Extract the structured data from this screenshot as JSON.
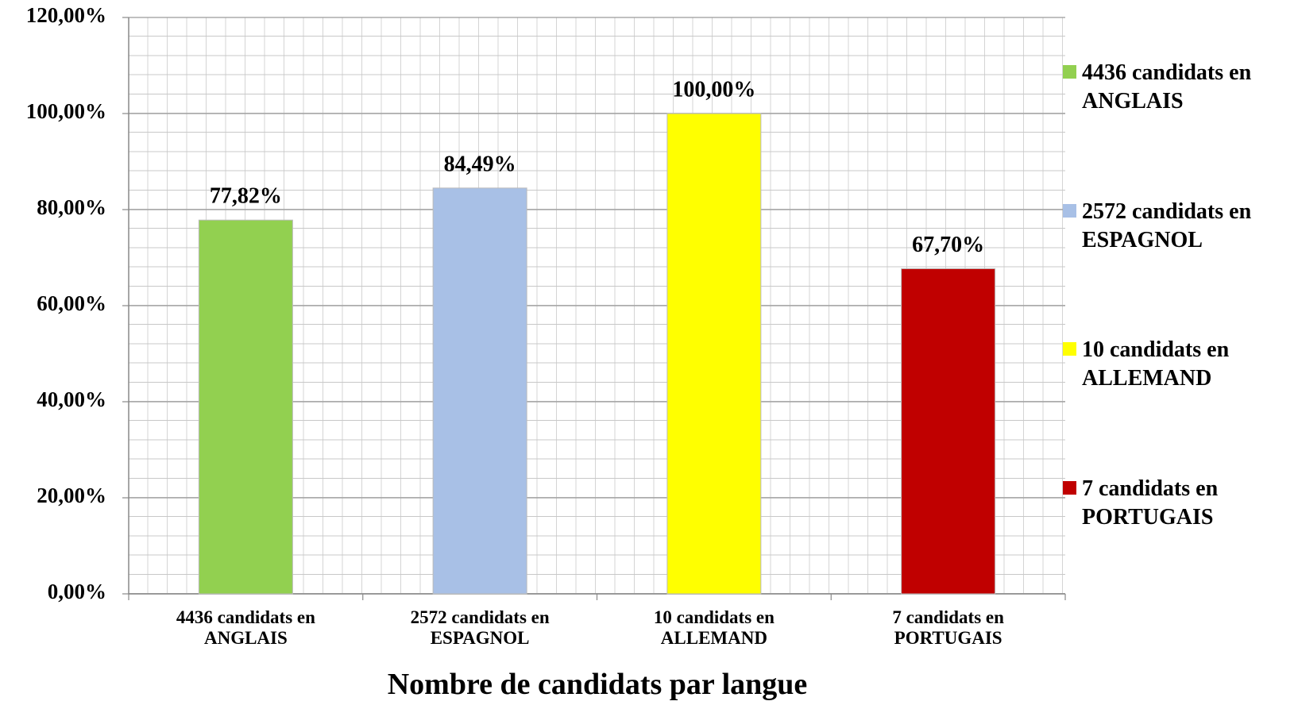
{
  "chart_data": {
    "type": "bar",
    "x_label": "Nombre de candidats par langue",
    "categories": [
      "4436 candidats en ANGLAIS",
      "2572 candidats en ESPAGNOL",
      "10 candidats en ALLEMAND",
      "7 candidats en PORTUGAIS"
    ],
    "values": [
      77.82,
      84.49,
      100,
      67.7
    ],
    "value_labels": [
      "77,82%",
      "84,49%",
      "100,00%",
      "67,70%"
    ],
    "colors": [
      "#92d050",
      "#a8c0e6",
      "#ffff00",
      "#c00000"
    ],
    "ylim": [
      0,
      120
    ],
    "yticks": [
      {
        "value": 0,
        "label": "0,00%"
      },
      {
        "value": 20,
        "label": "20,00%"
      },
      {
        "value": 40,
        "label": "40,00%"
      },
      {
        "value": 60,
        "label": "60,00%"
      },
      {
        "value": 80,
        "label": "80,00%"
      },
      {
        "value": 100,
        "label": "100,00%"
      },
      {
        "value": 120,
        "label": "120,00%"
      }
    ],
    "grid": true,
    "legend": "right"
  }
}
